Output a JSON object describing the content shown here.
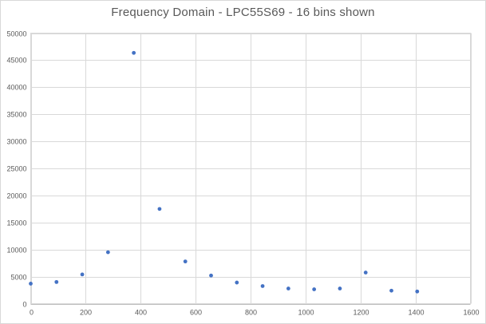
{
  "chart_data": {
    "type": "scatter",
    "title": "Frequency Domain - LPC55S69 - 16 bins shown",
    "xlabel": "",
    "ylabel": "",
    "x": [
      0,
      93.75,
      187.5,
      281.25,
      375,
      468.75,
      562.5,
      656.25,
      750,
      843.75,
      937.5,
      1031.25,
      1125,
      1218.75,
      1312.5,
      1406.25
    ],
    "y": [
      3700,
      4000,
      5400,
      9500,
      46350,
      17500,
      7800,
      5200,
      3900,
      3250,
      2800,
      2650,
      2800,
      5750,
      2400,
      2250
    ],
    "xlim": [
      0,
      1600
    ],
    "ylim": [
      0,
      50000
    ],
    "x_ticks": [
      0,
      200,
      400,
      600,
      800,
      1000,
      1200,
      1400,
      1600
    ],
    "y_ticks": [
      0,
      5000,
      10000,
      15000,
      20000,
      25000,
      30000,
      35000,
      40000,
      45000,
      50000
    ],
    "x_tick_labels": [
      "0",
      "200",
      "400",
      "600",
      "800",
      "1000",
      "1200",
      "1400",
      "1600"
    ],
    "y_tick_labels": [
      "0",
      "5000",
      "10000",
      "15000",
      "20000",
      "25000",
      "30000",
      "35000",
      "40000",
      "45000",
      "50000"
    ],
    "grid": true,
    "legend_position": "none",
    "marker_color": "#4472C4",
    "gridline_color": "#D9D9D9",
    "axis_line_color": "#BFBFBF",
    "tick_label_color": "#595959",
    "title_color": "#595959",
    "background_color": "#FFFFFF",
    "border_color": "#D9D9D9"
  }
}
